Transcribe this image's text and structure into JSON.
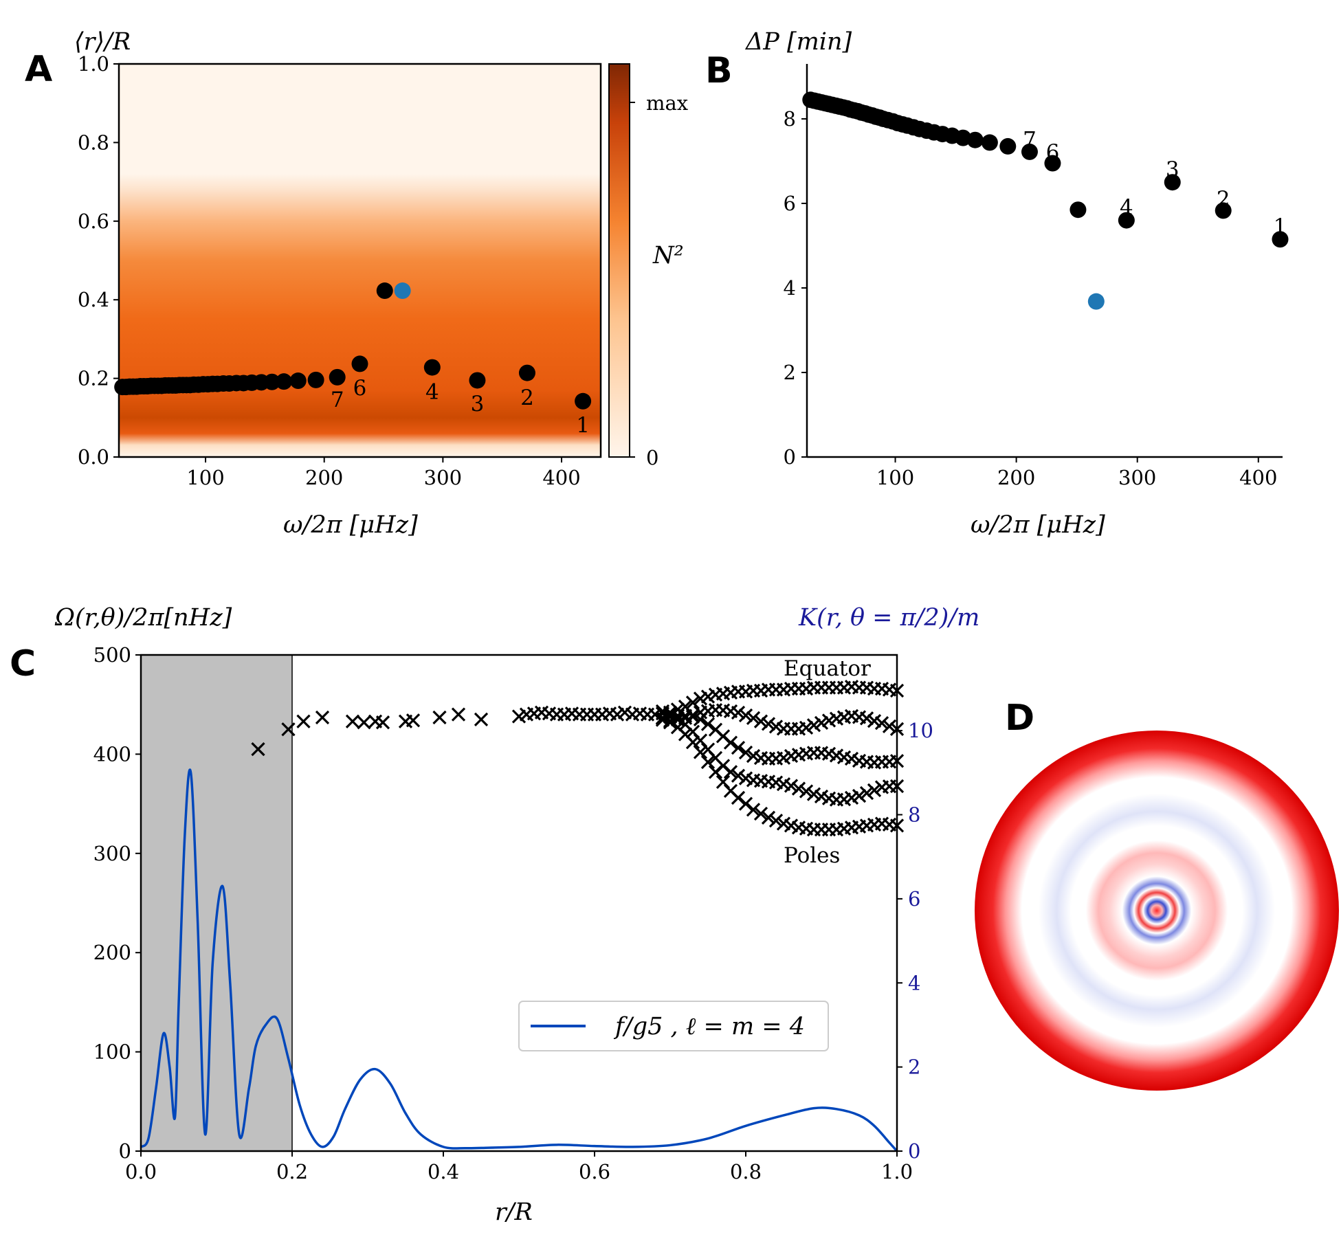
{
  "figure": {
    "panel_labels": [
      "A",
      "B",
      "C",
      "D"
    ],
    "colors": {
      "black_points": "#000000",
      "highlight_point": "#1f77b4",
      "curve": "#0047bb",
      "shade": "#c0c0c0",
      "right_axis": "#1a1a9a",
      "cmap_low": "#fff5eb",
      "cmap_mid": "#f07a28",
      "cmap_high": "#7f2704"
    }
  },
  "chart_data": [
    {
      "id": "A",
      "type": "scatter",
      "title": "",
      "ylabel": "⟨r⟩/R",
      "xlabel": "ω/2π [μHz]",
      "xlim": [
        27,
        433
      ],
      "ylim": [
        0.0,
        1.0
      ],
      "xticks": [
        100,
        200,
        300,
        400
      ],
      "yticks": [
        0.0,
        0.2,
        0.4,
        0.6,
        0.8,
        1.0
      ],
      "ytick_labels": [
        "0.0",
        "0.2",
        "0.4",
        "0.6",
        "0.8",
        "1.0"
      ],
      "background": "N² profile heatmap (peak near r/R≈0.1, fading to 0 above r/R≈0.7)",
      "colorbar": {
        "label": "N²",
        "ticks": [
          "0",
          "max"
        ]
      },
      "series_black": {
        "x": [
          30,
          33,
          36,
          39,
          42,
          45,
          48,
          51,
          54,
          57,
          60,
          63,
          66,
          69,
          72,
          75,
          78,
          81,
          84,
          87,
          90,
          94,
          98,
          102,
          106,
          110,
          115,
          120,
          126,
          132,
          139,
          147,
          156,
          166,
          178,
          193,
          211,
          230,
          251,
          291,
          329,
          371,
          418
        ],
        "y": [
          0.178,
          0.178,
          0.179,
          0.179,
          0.179,
          0.18,
          0.18,
          0.18,
          0.181,
          0.181,
          0.181,
          0.181,
          0.182,
          0.182,
          0.182,
          0.182,
          0.183,
          0.183,
          0.183,
          0.183,
          0.184,
          0.184,
          0.185,
          0.185,
          0.186,
          0.186,
          0.187,
          0.187,
          0.188,
          0.188,
          0.189,
          0.19,
          0.191,
          0.192,
          0.194,
          0.196,
          0.203,
          0.237,
          0.423,
          0.228,
          0.195,
          0.214,
          0.142
        ]
      },
      "series_highlight": {
        "x": [
          266
        ],
        "y": [
          0.423
        ]
      },
      "annotations": [
        {
          "text": "7",
          "x": 211,
          "y": 0.145
        },
        {
          "text": "6",
          "x": 230,
          "y": 0.175
        },
        {
          "text": "4",
          "x": 291,
          "y": 0.165
        },
        {
          "text": "3",
          "x": 329,
          "y": 0.135
        },
        {
          "text": "2",
          "x": 371,
          "y": 0.15
        },
        {
          "text": "1",
          "x": 418,
          "y": 0.08
        }
      ]
    },
    {
      "id": "B",
      "type": "scatter",
      "title": "",
      "ylabel": "ΔP [min]",
      "xlabel": "ω/2π [μHz]",
      "xlim": [
        27,
        420
      ],
      "ylim": [
        0,
        9.3
      ],
      "xticks": [
        100,
        200,
        300,
        400
      ],
      "yticks": [
        0,
        2,
        4,
        6,
        8
      ],
      "series_black": {
        "x": [
          30,
          33,
          36,
          39,
          42,
          45,
          48,
          51,
          54,
          57,
          60,
          63,
          66,
          69,
          72,
          75,
          78,
          81,
          84,
          87,
          90,
          94,
          98,
          102,
          106,
          110,
          115,
          120,
          126,
          132,
          139,
          147,
          156,
          166,
          178,
          193,
          211,
          230,
          251,
          291,
          329,
          371,
          418
        ],
        "y": [
          8.45,
          8.43,
          8.41,
          8.39,
          8.37,
          8.35,
          8.33,
          8.31,
          8.29,
          8.27,
          8.25,
          8.22,
          8.2,
          8.18,
          8.15,
          8.13,
          8.1,
          8.08,
          8.05,
          8.03,
          8.0,
          7.97,
          7.94,
          7.9,
          7.87,
          7.84,
          7.8,
          7.76,
          7.72,
          7.68,
          7.64,
          7.6,
          7.55,
          7.5,
          7.44,
          7.35,
          7.22,
          6.95,
          5.85,
          5.6,
          6.5,
          5.83,
          5.15
        ]
      },
      "series_highlight": {
        "x": [
          266
        ],
        "y": [
          3.68
        ]
      },
      "annotations": [
        {
          "text": "7",
          "x": 211,
          "y": 7.5
        },
        {
          "text": "6",
          "x": 230,
          "y": 7.2
        },
        {
          "text": "4",
          "x": 291,
          "y": 5.9
        },
        {
          "text": "3",
          "x": 329,
          "y": 6.8
        },
        {
          "text": "2",
          "x": 371,
          "y": 6.1
        },
        {
          "text": "1",
          "x": 418,
          "y": 5.45
        }
      ]
    },
    {
      "id": "C",
      "type": "line",
      "title": "",
      "ylabel_left": "Ω(r,θ)/2π[nHz]",
      "ylabel_right": "K(r, θ = π/2)/m",
      "xlabel": "r/R",
      "xlim": [
        0.0,
        1.0
      ],
      "ylim_left": [
        0,
        500
      ],
      "ylim_right": [
        0,
        11.8
      ],
      "xticks": [
        0.0,
        0.2,
        0.4,
        0.6,
        0.8,
        1.0
      ],
      "xtick_labels": [
        "0.0",
        "0.2",
        "0.4",
        "0.6",
        "0.8",
        "1.0"
      ],
      "yticks_left": [
        0,
        100,
        200,
        300,
        400,
        500
      ],
      "yticks_right": [
        0,
        2,
        4,
        6,
        8,
        10
      ],
      "shaded_region": [
        0.0,
        0.2
      ],
      "legend": {
        "label": "f/g5 ,   ℓ = m = 4",
        "position": "center-right"
      },
      "text_labels": [
        {
          "text": "Equator",
          "x": 0.885,
          "y": 475
        },
        {
          "text": "Poles",
          "x": 0.885,
          "y": 290
        }
      ],
      "kernel": {
        "x": [
          0.0,
          0.01,
          0.02,
          0.03,
          0.038,
          0.045,
          0.05,
          0.058,
          0.066,
          0.075,
          0.085,
          0.095,
          0.108,
          0.118,
          0.13,
          0.143,
          0.152,
          0.165,
          0.18,
          0.195,
          0.21,
          0.225,
          0.24,
          0.255,
          0.27,
          0.29,
          0.31,
          0.33,
          0.35,
          0.37,
          0.4,
          0.43,
          0.46,
          0.5,
          0.55,
          0.6,
          0.65,
          0.7,
          0.75,
          0.8,
          0.85,
          0.89,
          0.92,
          0.95,
          0.97,
          0.99,
          1.0
        ],
        "y": [
          0.1,
          0.3,
          1.5,
          2.8,
          2.0,
          0.8,
          3.5,
          7.5,
          9.0,
          5.5,
          0.4,
          4.5,
          6.3,
          4.0,
          0.4,
          1.5,
          2.5,
          3.0,
          3.15,
          2.2,
          1.1,
          0.4,
          0.1,
          0.35,
          1.0,
          1.7,
          1.95,
          1.6,
          0.9,
          0.4,
          0.1,
          0.07,
          0.08,
          0.1,
          0.15,
          0.12,
          0.1,
          0.14,
          0.3,
          0.6,
          0.85,
          1.02,
          1.0,
          0.85,
          0.6,
          0.2,
          0.0
        ]
      },
      "omega_crosses": {
        "x": [
          0.155,
          0.195,
          0.215,
          0.24,
          0.28,
          0.295,
          0.31,
          0.32,
          0.35,
          0.36,
          0.395,
          0.42,
          0.45,
          0.5,
          0.51,
          0.52,
          0.53,
          0.54,
          0.55,
          0.56,
          0.57,
          0.58,
          0.59,
          0.6,
          0.61,
          0.62,
          0.63,
          0.64,
          0.65,
          0.66,
          0.67,
          0.68,
          0.69,
          0.7,
          0.71,
          0.72,
          0.73,
          0.74,
          0.75,
          0.76,
          0.77,
          0.78,
          0.79,
          0.8,
          0.81,
          0.82,
          0.83,
          0.84,
          0.85,
          0.86,
          0.87,
          0.88,
          0.89,
          0.9,
          0.91,
          0.92,
          0.93,
          0.94,
          0.95,
          0.96,
          0.97,
          0.98,
          0.99,
          1.0
        ],
        "y_equator": [
          405,
          425,
          433,
          437,
          433,
          432,
          433,
          432,
          433,
          434,
          437,
          440,
          435,
          438,
          440,
          441,
          442,
          441,
          440,
          440,
          441,
          440,
          440,
          440,
          440,
          441,
          440,
          442,
          440,
          441,
          440,
          440,
          441,
          442,
          445,
          448,
          452,
          456,
          458,
          460,
          461,
          462,
          463,
          463,
          464,
          464,
          465,
          465,
          465,
          466,
          466,
          466,
          467,
          467,
          467,
          467,
          467,
          468,
          467,
          467,
          466,
          466,
          465,
          464
        ],
        "y_poles": [
          405,
          425,
          433,
          437,
          433,
          432,
          433,
          432,
          433,
          434,
          437,
          440,
          435,
          438,
          440,
          441,
          442,
          441,
          440,
          440,
          441,
          440,
          440,
          440,
          440,
          441,
          440,
          442,
          440,
          441,
          440,
          438,
          436,
          432,
          427,
          420,
          412,
          402,
          392,
          382,
          372,
          363,
          356,
          350,
          344,
          340,
          336,
          333,
          330,
          328,
          326,
          325,
          324,
          324,
          324,
          324,
          325,
          326,
          327,
          328,
          329,
          330,
          329,
          328
        ]
      },
      "omega_y_mid": [
        410,
        395,
        375
      ]
    },
    {
      "id": "D",
      "type": "heatmap",
      "title": "",
      "description_colors": [
        "#d90000",
        "#ffffff",
        "#c8cdf0"
      ],
      "ring_radii_fraction": [
        1.0,
        0.82,
        0.62,
        0.47,
        0.32,
        0.22,
        0.15,
        0.1,
        0.06,
        0.03
      ],
      "ring_values": [
        1.0,
        0.0,
        -0.15,
        0.0,
        0.3,
        0.0,
        -0.5,
        0.4,
        -0.8,
        0.9
      ]
    }
  ]
}
